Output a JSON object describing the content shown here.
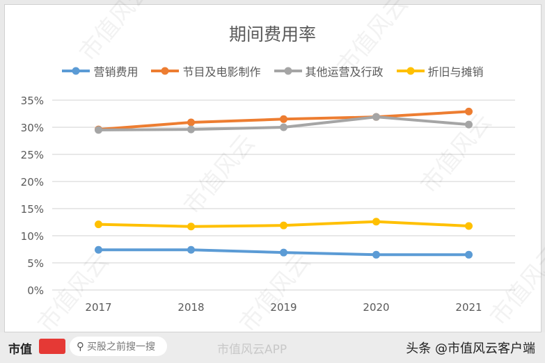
{
  "chart_data": {
    "type": "line",
    "title": "期间费用率",
    "categories": [
      "2017",
      "2018",
      "2019",
      "2020",
      "2021"
    ],
    "ylim": [
      0,
      35
    ],
    "yticks": [
      "0%",
      "5%",
      "10%",
      "15%",
      "20%",
      "25%",
      "30%",
      "35%"
    ],
    "grid": true,
    "legend": "top",
    "series": [
      {
        "name": "营销费用",
        "color": "#5b9bd5",
        "values": [
          7.4,
          7.4,
          6.9,
          6.5,
          6.5
        ]
      },
      {
        "name": "节目及电影制作",
        "color": "#ed7d31",
        "values": [
          29.6,
          30.9,
          31.5,
          31.9,
          32.9
        ]
      },
      {
        "name": "其他运营及行政",
        "color": "#a5a5a5",
        "values": [
          29.5,
          29.6,
          30.0,
          31.9,
          30.5
        ]
      },
      {
        "name": "折旧与摊销",
        "color": "#ffc000",
        "values": [
          12.1,
          11.7,
          11.9,
          12.6,
          11.8
        ]
      }
    ]
  },
  "watermark": "市值风云",
  "footer": {
    "brand": "市值",
    "logo": "风云",
    "search_placeholder": "买股之前搜一搜",
    "weibo": "市值风云APP",
    "toutiao": "头条 @市值风云客户端"
  }
}
